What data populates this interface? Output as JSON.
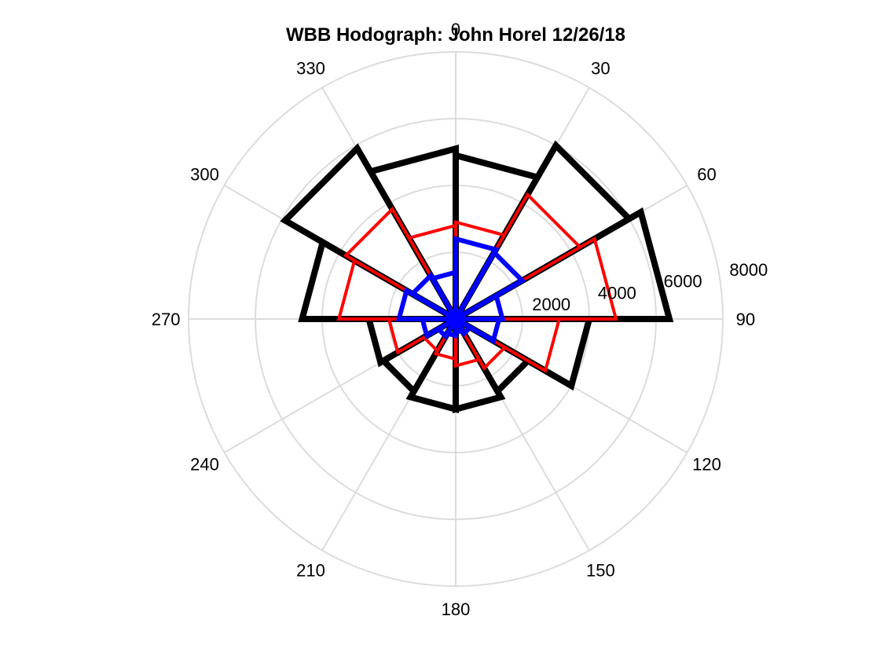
{
  "chart_data": {
    "type": "polar-histogram",
    "title": "WBB Hodograph: John Horel 12/26/18",
    "theta_zero": "top",
    "theta_direction": "clockwise",
    "theta_ticks": [
      "0",
      "30",
      "60",
      "90",
      "120",
      "150",
      "180",
      "210",
      "240",
      "270",
      "300",
      "330"
    ],
    "r_ticks": [
      "2000",
      "4000",
      "6000",
      "8000"
    ],
    "r_max": 8000,
    "bin_width_deg": 30,
    "bin_edges_deg": [
      0,
      30,
      60,
      90,
      120,
      150,
      180,
      210,
      240,
      270,
      300,
      330
    ],
    "grid": true,
    "series": [
      {
        "color": "#000000",
        "values": [
          4900,
          6000,
          6400,
          4000,
          2500,
          2700,
          2700,
          2500,
          2600,
          4600,
          5900,
          5100
        ]
      },
      {
        "color": "#ff0000",
        "values": [
          2900,
          4300,
          4800,
          3100,
          1700,
          1400,
          1200,
          1100,
          2000,
          3500,
          3800,
          2800
        ]
      },
      {
        "color": "#0000ff",
        "values": [
          2400,
          2300,
          1400,
          1300,
          500,
          400,
          500,
          600,
          1000,
          1700,
          1500,
          1400
        ]
      }
    ]
  }
}
